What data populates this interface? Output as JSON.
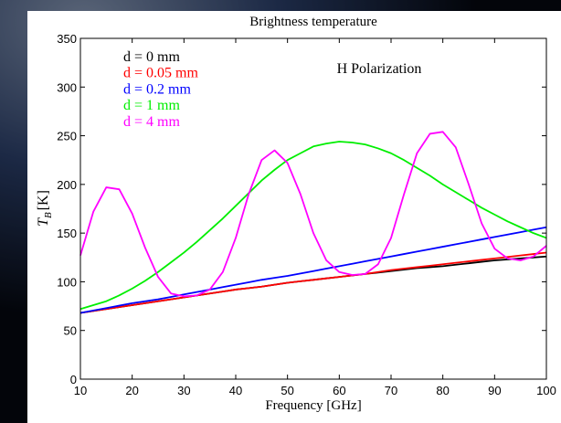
{
  "chart_data": {
    "type": "line",
    "title": "Brightness temperature",
    "annotation": "H Polarization",
    "xlabel": "Frequency [GHz]",
    "ylabel": {
      "symbol": "T",
      "subscript": "B",
      "unit": "[K]"
    },
    "xlim": [
      10,
      100
    ],
    "ylim": [
      0,
      350
    ],
    "xticks": [
      10,
      20,
      30,
      40,
      50,
      60,
      70,
      80,
      90,
      100
    ],
    "yticks": [
      0,
      50,
      100,
      150,
      200,
      250,
      300,
      350
    ],
    "grid": false,
    "legend": "upper left",
    "x": [
      10,
      12.5,
      15,
      17.5,
      20,
      22.5,
      25,
      27.5,
      30,
      32.5,
      35,
      37.5,
      40,
      42.5,
      45,
      47.5,
      50,
      52.5,
      55,
      57.5,
      60,
      62.5,
      65,
      67.5,
      70,
      72.5,
      75,
      77.5,
      80,
      82.5,
      85,
      87.5,
      90,
      92.5,
      95,
      97.5,
      100
    ],
    "series": [
      {
        "name": "d = 0 mm",
        "color": "#000000",
        "values": [
          68,
          70,
          72,
          74,
          76,
          78,
          80,
          82,
          84,
          86,
          88,
          90,
          92,
          93.5,
          95,
          97,
          99,
          100.5,
          102,
          103.5,
          105,
          106.5,
          108,
          109.5,
          111,
          112.5,
          114,
          115,
          116,
          117.5,
          119,
          120.5,
          122,
          123,
          124,
          125,
          126
        ]
      },
      {
        "name": "d = 0.05 mm",
        "color": "#ff0000",
        "values": [
          68,
          70,
          72,
          74,
          76,
          78,
          80,
          82,
          84,
          86,
          88,
          90,
          92,
          93.5,
          95,
          97,
          99,
          100.5,
          102,
          103.5,
          105,
          106.5,
          108,
          110,
          112,
          113.5,
          115,
          116.5,
          118,
          119.5,
          121,
          122.5,
          124,
          125.5,
          127,
          128.5,
          130
        ]
      },
      {
        "name": "d = 0.2 mm",
        "color": "#0000ff",
        "values": [
          68,
          70.5,
          73,
          75.5,
          78,
          80,
          82,
          84.5,
          87,
          89.5,
          92,
          94.5,
          97,
          99.5,
          102,
          104,
          106,
          108.5,
          111,
          113.5,
          116,
          118.5,
          121,
          123.5,
          126,
          128.5,
          131,
          133.5,
          136,
          138.5,
          141,
          143.5,
          146,
          148.5,
          151,
          153.5,
          156
        ]
      },
      {
        "name": "d = 1 mm",
        "color": "#00ee00",
        "values": [
          72,
          76,
          80,
          86,
          93,
          101,
          110,
          120,
          130,
          141,
          153,
          165,
          178,
          191,
          204,
          215,
          225,
          232,
          239,
          242,
          244,
          243,
          241,
          237,
          232,
          225,
          217,
          209,
          200,
          192,
          184,
          176,
          169,
          162,
          156,
          150,
          145
        ]
      },
      {
        "name": "d = 4 mm",
        "color": "#ff00ff",
        "values": [
          127,
          172,
          197,
          195,
          170,
          135,
          105,
          88,
          85,
          86,
          92,
          110,
          145,
          190,
          225,
          235,
          222,
          190,
          150,
          122,
          110,
          107,
          108,
          118,
          145,
          190,
          232,
          252,
          254,
          238,
          200,
          160,
          134,
          124,
          122,
          126,
          137
        ]
      }
    ]
  }
}
